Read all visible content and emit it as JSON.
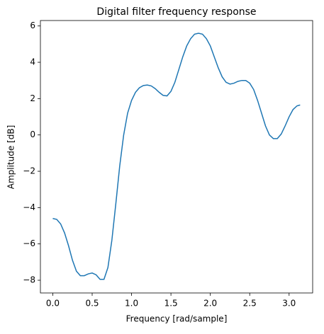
{
  "chart_data": {
    "type": "line",
    "title": "Digital filter frequency response",
    "xlabel": "Frequency [rad/sample]",
    "ylabel": "Amplitude [dB]",
    "x": [
      0,
      0.05,
      0.1,
      0.15,
      0.2,
      0.25,
      0.3,
      0.35,
      0.4,
      0.45,
      0.5,
      0.55,
      0.6,
      0.65,
      0.7,
      0.75,
      0.8,
      0.85,
      0.9,
      0.95,
      1.0,
      1.05,
      1.1,
      1.15,
      1.2,
      1.25,
      1.3,
      1.35,
      1.4,
      1.45,
      1.5,
      1.55,
      1.6,
      1.65,
      1.7,
      1.75,
      1.8,
      1.85,
      1.9,
      1.95,
      2.0,
      2.05,
      2.1,
      2.15,
      2.2,
      2.25,
      2.3,
      2.35,
      2.4,
      2.45,
      2.5,
      2.55,
      2.6,
      2.65,
      2.7,
      2.75,
      2.8,
      2.85,
      2.9,
      2.95,
      3.0,
      3.05,
      3.1,
      3.14
    ],
    "series": [
      {
        "color": "#1f77b4",
        "values": [
          -4.6,
          -4.65,
          -4.9,
          -5.4,
          -6.1,
          -6.9,
          -7.5,
          -7.75,
          -7.75,
          -7.65,
          -7.6,
          -7.7,
          -7.95,
          -7.95,
          -7.3,
          -5.8,
          -3.8,
          -1.7,
          0.0,
          1.2,
          1.9,
          2.35,
          2.6,
          2.72,
          2.75,
          2.7,
          2.55,
          2.35,
          2.18,
          2.15,
          2.4,
          2.9,
          3.6,
          4.3,
          4.9,
          5.3,
          5.55,
          5.6,
          5.55,
          5.3,
          4.9,
          4.3,
          3.7,
          3.2,
          2.9,
          2.8,
          2.85,
          2.95,
          3.0,
          3.0,
          2.85,
          2.5,
          1.9,
          1.2,
          0.5,
          0.0,
          -0.2,
          -0.2,
          0.05,
          0.5,
          1.0,
          1.4,
          1.6,
          1.65
        ]
      }
    ],
    "xlim": [
      -0.157,
      3.299
    ],
    "ylim": [
      -8.7,
      6.3
    ],
    "xticks": [
      {
        "value": 0,
        "label": "0.0"
      },
      {
        "value": 0.5,
        "label": "0.5"
      },
      {
        "value": 1,
        "label": "1.0"
      },
      {
        "value": 1.5,
        "label": "1.5"
      },
      {
        "value": 2,
        "label": "2.0"
      },
      {
        "value": 2.5,
        "label": "2.5"
      },
      {
        "value": 3,
        "label": "3.0"
      }
    ],
    "yticks": [
      {
        "value": -8,
        "label": "−8"
      },
      {
        "value": -6,
        "label": "−6"
      },
      {
        "value": -4,
        "label": "−4"
      },
      {
        "value": -2,
        "label": "−2"
      },
      0,
      2,
      4,
      6
    ]
  }
}
